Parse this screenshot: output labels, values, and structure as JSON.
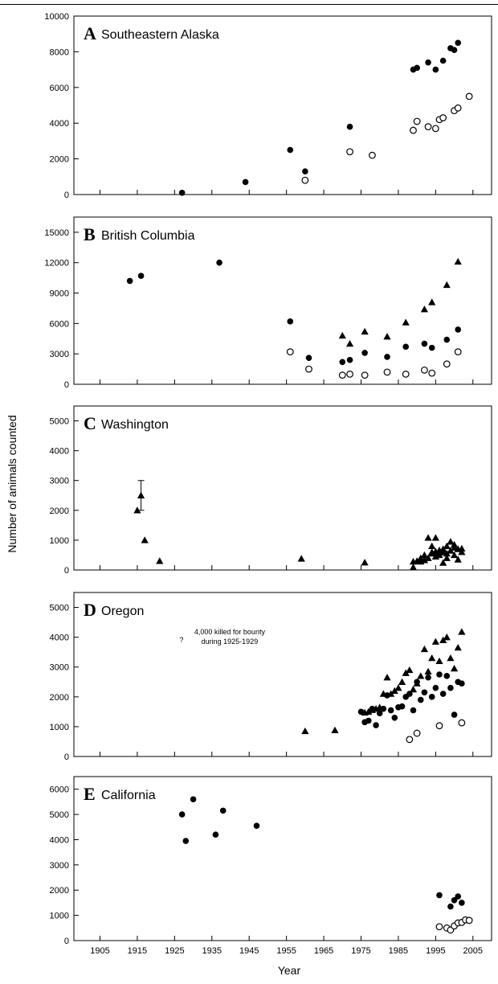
{
  "figure": {
    "ylabel": "Number of animals counted",
    "xlabel": "Year",
    "x_ticks": [
      1905,
      1915,
      1925,
      1935,
      1945,
      1955,
      1965,
      1975,
      1985,
      1995,
      2005
    ],
    "xlim": [
      1898,
      2010
    ]
  },
  "chart_data": [
    {
      "type": "scatter",
      "letter": "A",
      "title": "Southeastern Alaska",
      "ylim": [
        0,
        10000
      ],
      "y_ticks": [
        0,
        2000,
        4000,
        6000,
        8000,
        10000
      ],
      "series": [
        {
          "marker": "filled-circle",
          "points": [
            [
              1927,
              100
            ],
            [
              1944,
              700
            ],
            [
              1956,
              2500
            ],
            [
              1960,
              1300
            ],
            [
              1972,
              3800
            ],
            [
              1989,
              7000
            ],
            [
              1990,
              7100
            ],
            [
              1993,
              7400
            ],
            [
              1995,
              7000
            ],
            [
              1997,
              7500
            ],
            [
              1999,
              8200
            ],
            [
              2000,
              8100
            ],
            [
              2001,
              8500
            ]
          ]
        },
        {
          "marker": "open-circle",
          "points": [
            [
              1960,
              800
            ],
            [
              1972,
              2400
            ],
            [
              1978,
              2200
            ],
            [
              1989,
              3600
            ],
            [
              1990,
              4100
            ],
            [
              1993,
              3800
            ],
            [
              1995,
              3700
            ],
            [
              1996,
              4200
            ],
            [
              1997,
              4300
            ],
            [
              2000,
              4700
            ],
            [
              2001,
              4850
            ],
            [
              2004,
              5500
            ]
          ]
        }
      ]
    },
    {
      "type": "scatter",
      "letter": "B",
      "title": "British Columbia",
      "ylim": [
        0,
        16500
      ],
      "y_ticks": [
        0,
        3000,
        6000,
        9000,
        12000,
        15000
      ],
      "series": [
        {
          "marker": "filled-circle",
          "points": [
            [
              1913,
              10200
            ],
            [
              1916,
              10700
            ],
            [
              1937,
              12000
            ],
            [
              1956,
              6200
            ],
            [
              1961,
              2600
            ],
            [
              1970,
              2200
            ],
            [
              1972,
              2400
            ],
            [
              1976,
              3100
            ],
            [
              1982,
              2700
            ],
            [
              1987,
              3700
            ],
            [
              1992,
              4000
            ],
            [
              1994,
              3600
            ],
            [
              1998,
              4400
            ],
            [
              2001,
              5400
            ]
          ]
        },
        {
          "marker": "filled-triangle",
          "points": [
            [
              1970,
              4800
            ],
            [
              1972,
              4000
            ],
            [
              1976,
              5200
            ],
            [
              1982,
              4700
            ],
            [
              1987,
              6100
            ],
            [
              1992,
              7400
            ],
            [
              1994,
              8100
            ],
            [
              1998,
              9800
            ],
            [
              2001,
              12100
            ]
          ]
        },
        {
          "marker": "open-circle",
          "points": [
            [
              1956,
              3200
            ],
            [
              1961,
              1500
            ],
            [
              1970,
              900
            ],
            [
              1972,
              1000
            ],
            [
              1976,
              900
            ],
            [
              1982,
              1200
            ],
            [
              1987,
              1000
            ],
            [
              1992,
              1400
            ],
            [
              1994,
              1100
            ],
            [
              1998,
              2000
            ],
            [
              2001,
              3200
            ]
          ]
        }
      ]
    },
    {
      "type": "scatter",
      "letter": "C",
      "title": "Washington",
      "ylim": [
        0,
        5500
      ],
      "y_ticks": [
        0,
        1000,
        2000,
        3000,
        4000,
        5000
      ],
      "series": [
        {
          "marker": "filled-triangle",
          "points": [
            [
              1915,
              2000
            ],
            [
              1916,
              2500
            ],
            [
              1917,
              1000
            ],
            [
              1921,
              300
            ],
            [
              1959,
              380
            ],
            [
              1976,
              250
            ],
            [
              1989,
              90
            ],
            [
              1989,
              280
            ],
            [
              1990,
              300
            ],
            [
              1991,
              280
            ],
            [
              1991,
              400
            ],
            [
              1992,
              330
            ],
            [
              1992,
              500
            ],
            [
              1993,
              400
            ],
            [
              1993,
              1080
            ],
            [
              1994,
              550
            ],
            [
              1994,
              600
            ],
            [
              1994,
              800
            ],
            [
              1995,
              1080
            ],
            [
              1995,
              450
            ],
            [
              1995,
              620
            ],
            [
              1996,
              500
            ],
            [
              1996,
              660
            ],
            [
              1996,
              580
            ],
            [
              1997,
              600
            ],
            [
              1997,
              240
            ],
            [
              1997,
              700
            ],
            [
              1998,
              800
            ],
            [
              1998,
              550
            ],
            [
              1998,
              400
            ],
            [
              1999,
              950
            ],
            [
              1999,
              650
            ],
            [
              2000,
              850
            ],
            [
              2000,
              500
            ],
            [
              2000,
              750
            ],
            [
              2001,
              700
            ],
            [
              2001,
              350
            ],
            [
              2002,
              600
            ],
            [
              2002,
              720
            ]
          ]
        }
      ],
      "error_bars": [
        {
          "x": 1916,
          "low": 2000,
          "high": 3000
        }
      ]
    },
    {
      "type": "scatter",
      "letter": "D",
      "title": "Oregon",
      "ylim": [
        0,
        5500
      ],
      "y_ticks": [
        0,
        1000,
        2000,
        3000,
        4000,
        5000
      ],
      "annotation": {
        "mark": "?",
        "lines": [
          "4,000 killed for bounty",
          "during 1925-1929"
        ],
        "x": 1929,
        "y": 4100
      },
      "series": [
        {
          "marker": "filled-triangle",
          "points": [
            [
              1960,
              850
            ],
            [
              1968,
              880
            ],
            [
              1976,
              1470
            ],
            [
              1977,
              1500
            ],
            [
              1978,
              1560
            ],
            [
              1979,
              1600
            ],
            [
              1980,
              1650
            ],
            [
              1981,
              2100
            ],
            [
              1982,
              2650
            ],
            [
              1983,
              2100
            ],
            [
              1984,
              2200
            ],
            [
              1985,
              2300
            ],
            [
              1986,
              2500
            ],
            [
              1987,
              2800
            ],
            [
              1988,
              2900
            ],
            [
              1989,
              2250
            ],
            [
              1990,
              2450
            ],
            [
              1991,
              2700
            ],
            [
              1992,
              3600
            ],
            [
              1993,
              2850
            ],
            [
              1994,
              3300
            ],
            [
              1995,
              3850
            ],
            [
              1996,
              3200
            ],
            [
              1997,
              3900
            ],
            [
              1998,
              4000
            ],
            [
              1999,
              3300
            ],
            [
              2000,
              2950
            ],
            [
              2001,
              3650
            ],
            [
              2002,
              4180
            ]
          ]
        },
        {
          "marker": "filled-circle",
          "points": [
            [
              1975,
              1500
            ],
            [
              1976,
              1150
            ],
            [
              1977,
              1200
            ],
            [
              1978,
              1600
            ],
            [
              1979,
              1050
            ],
            [
              1980,
              1450
            ],
            [
              1981,
              1600
            ],
            [
              1982,
              2050
            ],
            [
              1983,
              1550
            ],
            [
              1984,
              1300
            ],
            [
              1985,
              1650
            ],
            [
              1986,
              1680
            ],
            [
              1987,
              2000
            ],
            [
              1988,
              2100
            ],
            [
              1989,
              1550
            ],
            [
              1990,
              2500
            ],
            [
              1991,
              1900
            ],
            [
              1992,
              2150
            ],
            [
              1993,
              2650
            ],
            [
              1994,
              2000
            ],
            [
              1995,
              2300
            ],
            [
              1996,
              2750
            ],
            [
              1997,
              2100
            ],
            [
              1998,
              2700
            ],
            [
              1999,
              2300
            ],
            [
              2000,
              1400
            ],
            [
              2001,
              2500
            ],
            [
              2002,
              2450
            ]
          ]
        },
        {
          "marker": "open-circle",
          "points": [
            [
              1988,
              570
            ],
            [
              1990,
              780
            ],
            [
              1996,
              1030
            ],
            [
              2002,
              1130
            ]
          ]
        }
      ]
    },
    {
      "type": "scatter",
      "letter": "E",
      "title": "California",
      "ylim": [
        0,
        6500
      ],
      "y_ticks": [
        0,
        1000,
        2000,
        3000,
        4000,
        5000,
        6000
      ],
      "series": [
        {
          "marker": "filled-circle",
          "points": [
            [
              1927,
              5000
            ],
            [
              1928,
              3950
            ],
            [
              1930,
              5600
            ],
            [
              1936,
              4200
            ],
            [
              1938,
              5150
            ],
            [
              1947,
              4550
            ],
            [
              1996,
              1800
            ],
            [
              1999,
              1350
            ],
            [
              2000,
              1600
            ],
            [
              2001,
              1750
            ],
            [
              2002,
              1500
            ]
          ]
        },
        {
          "marker": "open-circle",
          "points": [
            [
              1996,
              550
            ],
            [
              1998,
              500
            ],
            [
              1999,
              420
            ],
            [
              2000,
              580
            ],
            [
              2001,
              700
            ],
            [
              2002,
              720
            ],
            [
              2003,
              820
            ],
            [
              2004,
              800
            ]
          ]
        }
      ]
    }
  ]
}
